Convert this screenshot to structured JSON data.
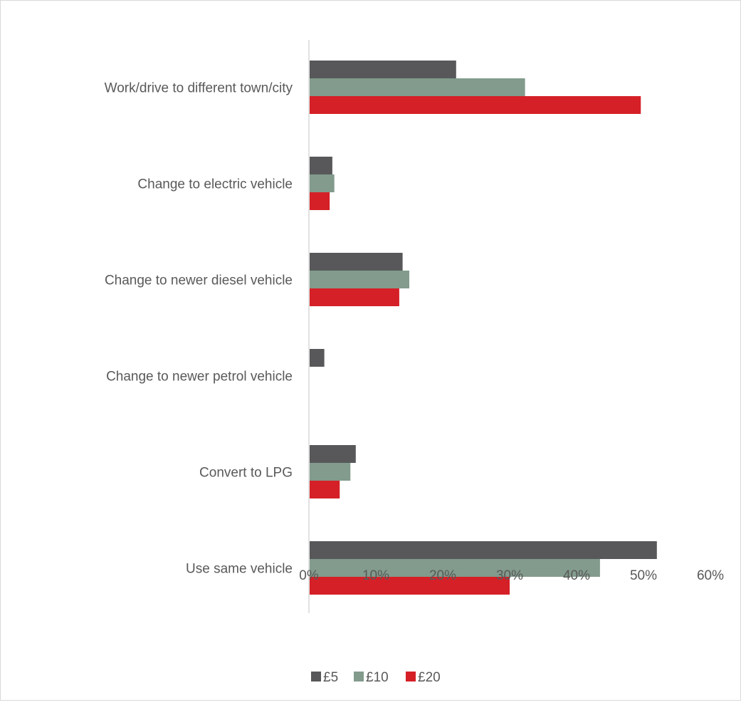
{
  "chart_data": {
    "type": "bar",
    "orientation": "horizontal",
    "categories": [
      "Work/drive to different town/city",
      "Change to electric vehicle",
      "Change to newer diesel vehicle",
      "Change to newer petrol vehicle",
      "Convert to LPG",
      "Use same vehicle"
    ],
    "series": [
      {
        "name": "£5",
        "color": "#58585a",
        "values": [
          22,
          3.5,
          14,
          2.3,
          7,
          52
        ]
      },
      {
        "name": "£10",
        "color": "#829b8c",
        "values": [
          32.3,
          3.8,
          15,
          0,
          6.2,
          43.5
        ]
      },
      {
        "name": "£20",
        "color": "#d52027",
        "values": [
          49.6,
          3.1,
          13.5,
          0,
          4.6,
          30
        ]
      }
    ],
    "title": "",
    "xlabel": "",
    "ylabel": "",
    "xlim": [
      0,
      60
    ],
    "xticks": [
      "0%",
      "10%",
      "20%",
      "30%",
      "40%",
      "50%",
      "60%"
    ],
    "grid": false,
    "legend_position": "bottom"
  }
}
